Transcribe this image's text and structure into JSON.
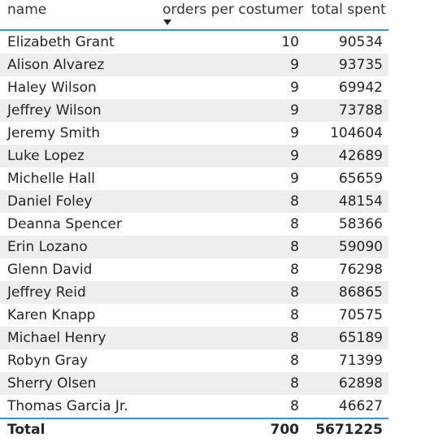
{
  "table": {
    "columns": {
      "name": "name",
      "orders": "orders per costumer",
      "spent": "total spent"
    },
    "sort_icon": "sort-descending-icon",
    "rows": [
      {
        "name": "Elizabeth Grant",
        "orders": "10",
        "spent": "90534"
      },
      {
        "name": "Alison Alvarez",
        "orders": "9",
        "spent": "93735"
      },
      {
        "name": "Haley Wilson",
        "orders": "9",
        "spent": "69942"
      },
      {
        "name": "Jeffrey Wilson",
        "orders": "9",
        "spent": "73788"
      },
      {
        "name": "Jeremy Smith",
        "orders": "9",
        "spent": "104604"
      },
      {
        "name": "Luke Lopez",
        "orders": "9",
        "spent": "42689"
      },
      {
        "name": "Michelle Hall",
        "orders": "9",
        "spent": "65659"
      },
      {
        "name": "Daniel Foley",
        "orders": "8",
        "spent": "48154"
      },
      {
        "name": "Deanna Spencer",
        "orders": "8",
        "spent": "58366"
      },
      {
        "name": "Erin Lozano",
        "orders": "8",
        "spent": "59090"
      },
      {
        "name": "Glenn David",
        "orders": "8",
        "spent": "76298"
      },
      {
        "name": "Jeffrey Reid",
        "orders": "8",
        "spent": "86865"
      },
      {
        "name": "Karen Knapp",
        "orders": "8",
        "spent": "70575"
      },
      {
        "name": "Michael Henry",
        "orders": "8",
        "spent": "65189"
      },
      {
        "name": "Robyn Gray",
        "orders": "8",
        "spent": "71399"
      },
      {
        "name": "Sherry Olsen",
        "orders": "8",
        "spent": "62898"
      },
      {
        "name": "Thomas Garcia Jr.",
        "orders": "8",
        "spent": "46627"
      }
    ],
    "total": {
      "label": "Total",
      "orders": "700",
      "spent": "5671225"
    }
  },
  "colors": {
    "accent": "#3f8fd2",
    "alt_row": "#eeeeee",
    "text": "#252423"
  }
}
